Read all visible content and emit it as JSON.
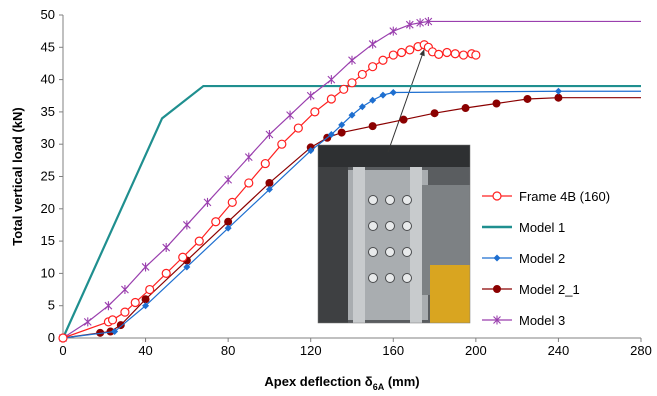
{
  "chart_data": {
    "type": "line",
    "title": "",
    "xlabel": "Apex deflection δ6A (mm)",
    "xlabel_main": "Apex deflection δ",
    "xlabel_sub": "6A",
    "xlabel_tail": " (mm)",
    "ylabel": "Total vertical load (kN)",
    "xlim": [
      0,
      280
    ],
    "ylim": [
      0,
      50
    ],
    "xticks": [
      0,
      40,
      80,
      120,
      160,
      200,
      240,
      280
    ],
    "yticks": [
      0,
      5,
      10,
      15,
      20,
      25,
      30,
      35,
      40,
      45,
      50
    ],
    "grid": false,
    "legend_position": "lower-right",
    "inset": "photograph of bolted apex connection with arrow pointing to the peak of the Frame 4B curve",
    "series": [
      {
        "name": "Frame 4B (160)",
        "color": "#ff2020",
        "marker": "open-circle",
        "x": [
          0,
          22,
          24,
          30,
          35,
          42,
          50,
          58,
          66,
          74,
          82,
          90,
          98,
          106,
          114,
          122,
          130,
          136,
          140,
          145,
          150,
          155,
          160,
          164,
          168,
          172,
          175,
          177,
          179,
          182,
          186,
          190,
          194,
          198,
          200
        ],
        "y": [
          0,
          2.5,
          2.8,
          4.0,
          5.5,
          7.5,
          10.0,
          12.5,
          15.0,
          18.0,
          21.0,
          24.0,
          27.0,
          30.0,
          32.5,
          35.0,
          37.0,
          38.5,
          39.5,
          40.8,
          42.0,
          43.0,
          43.8,
          44.2,
          44.6,
          45.1,
          45.4,
          45.0,
          44.3,
          43.9,
          44.2,
          44.0,
          43.8,
          44.0,
          43.8
        ]
      },
      {
        "name": "Model 1",
        "color": "#1f8f8f",
        "marker": "none",
        "x": [
          0,
          48,
          68,
          280
        ],
        "y": [
          0,
          34,
          39,
          39
        ]
      },
      {
        "name": "Model 2",
        "color": "#1e6fd0",
        "marker": "diamond",
        "x": [
          0,
          25,
          40,
          60,
          80,
          100,
          120,
          130,
          135,
          140,
          145,
          150,
          155,
          160,
          240,
          280
        ],
        "y": [
          0,
          1.0,
          5.0,
          11.0,
          17.0,
          23.0,
          29.0,
          31.5,
          33.0,
          34.5,
          35.8,
          36.8,
          37.6,
          38.0,
          38.2,
          38.2
        ]
      },
      {
        "name": "Model 2_1",
        "color": "#8b0000",
        "marker": "filled-circle",
        "x": [
          0,
          18,
          23,
          28,
          40,
          60,
          80,
          100,
          120,
          128,
          135,
          150,
          165,
          180,
          195,
          210,
          225,
          240,
          280
        ],
        "y": [
          0,
          0.8,
          1.0,
          2.0,
          6.0,
          12.0,
          18.0,
          24.0,
          29.5,
          31.0,
          31.8,
          32.8,
          33.8,
          34.8,
          35.6,
          36.3,
          37.0,
          37.2,
          37.2
        ]
      },
      {
        "name": "Model 3",
        "color": "#9a3fae",
        "marker": "star",
        "x": [
          0,
          12,
          22,
          30,
          40,
          50,
          60,
          70,
          80,
          90,
          100,
          110,
          120,
          130,
          140,
          150,
          160,
          168,
          173,
          177,
          280
        ],
        "y": [
          0,
          2.5,
          5.0,
          7.5,
          11.0,
          14.0,
          17.5,
          21.0,
          24.5,
          28.0,
          31.5,
          34.5,
          37.5,
          40.0,
          43.0,
          45.5,
          47.5,
          48.5,
          48.8,
          49.0,
          49.0
        ]
      }
    ]
  }
}
